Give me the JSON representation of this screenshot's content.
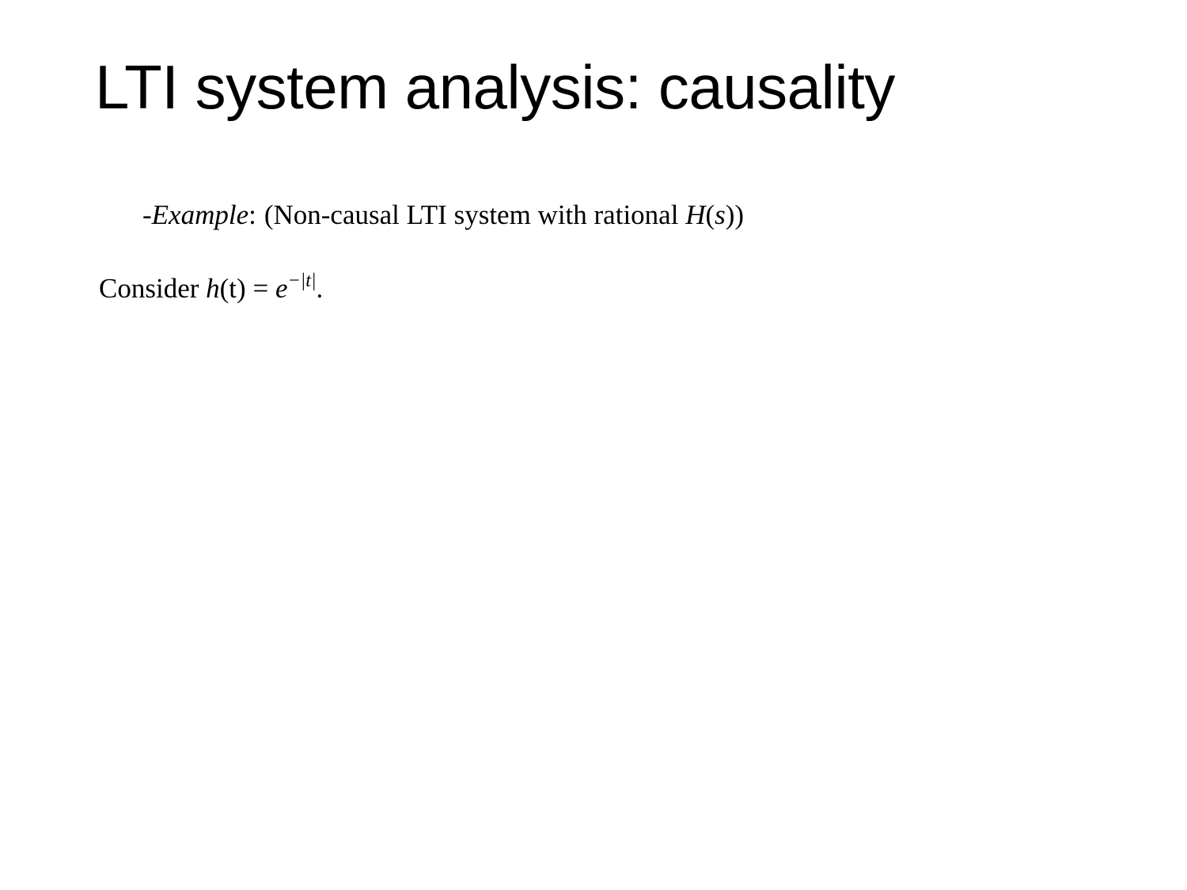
{
  "slide": {
    "title": "LTI system analysis: causality"
  },
  "example": {
    "dash": "-",
    "label": "Example",
    "colon": ":",
    "text": "(Non-causal LTI system with rational ",
    "func": "H",
    "arg_open": "(",
    "arg": "s",
    "close": "))"
  },
  "consider": {
    "word": "Consider ",
    "lhs_func": "h",
    "lhs_arg": "(t)",
    "equals": " = ",
    "base": "e",
    "exponent": "−|t|",
    "period": "."
  }
}
